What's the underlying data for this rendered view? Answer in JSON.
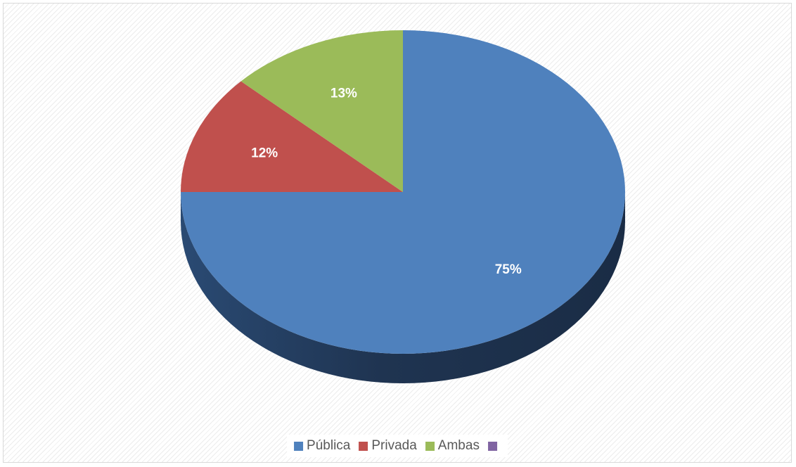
{
  "chart_data": {
    "type": "pie",
    "style": "3d",
    "categories": [
      "Pública",
      "Privada",
      "Ambas",
      ""
    ],
    "values": [
      75,
      12,
      13,
      0
    ],
    "labels": [
      "75%",
      "12%",
      "13%",
      ""
    ],
    "colors": [
      "#4f81bd",
      "#c0504d",
      "#9bbb59",
      "#8064a2"
    ],
    "side_colors": [
      "#1f3451",
      "#6e2b29",
      "#5a6e33",
      "#4a3a5e"
    ],
    "title": "",
    "legend_position": "bottom"
  },
  "legend": {
    "items": [
      {
        "label": "Pública",
        "color": "#4f81bd"
      },
      {
        "label": "Privada",
        "color": "#c0504d"
      },
      {
        "label": "Ambas",
        "color": "#9bbb59"
      },
      {
        "label": "",
        "color": "#8064a2"
      }
    ]
  }
}
